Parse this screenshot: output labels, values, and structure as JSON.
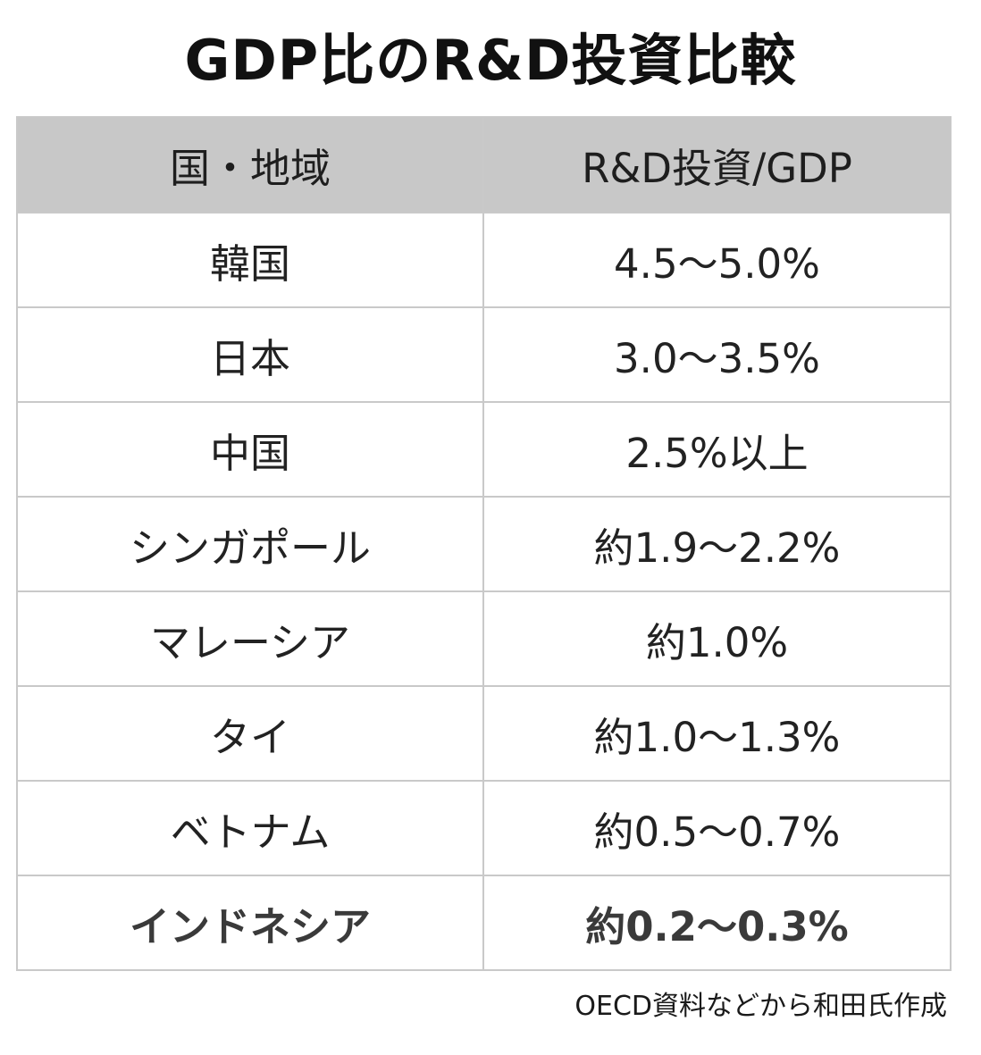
{
  "title": "GDP比のR&D投資比較",
  "table": {
    "headers": [
      "国・地域",
      "R&D投資/GDP"
    ],
    "rows": [
      {
        "region": "韓国",
        "value": "4.5〜5.0%"
      },
      {
        "region": "日本",
        "value": "3.0〜3.5%"
      },
      {
        "region": "中国",
        "value": "2.5%以上"
      },
      {
        "region": "シンガポール",
        "value": "約1.9〜2.2%"
      },
      {
        "region": "マレーシア",
        "value": "約1.0%"
      },
      {
        "region": "タイ",
        "value": "約1.0〜1.3%"
      },
      {
        "region": "ベトナム",
        "value": "約0.5〜0.7%"
      },
      {
        "region": "インドネシア",
        "value": "約0.2〜0.3%"
      }
    ]
  },
  "source": "OECD資料などから和田氏作成"
}
